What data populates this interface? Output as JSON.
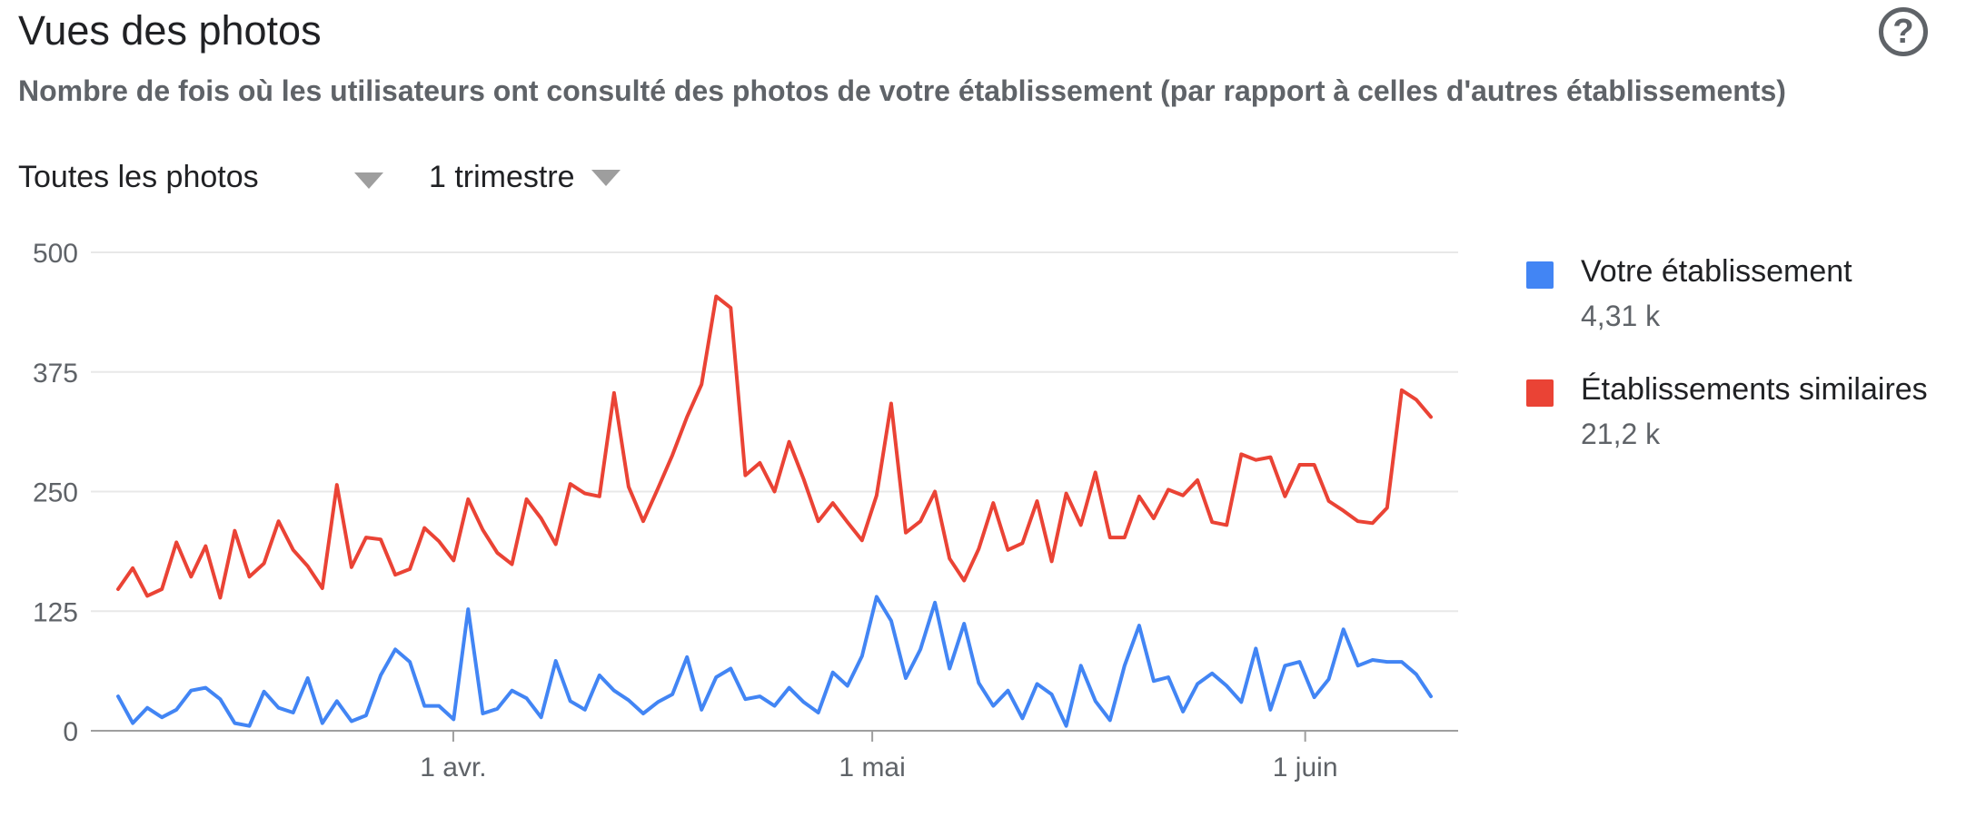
{
  "header": {
    "title": "Vues des photos",
    "subtitle": "Nombre de fois où les utilisateurs ont consulté des photos de votre établissement (par rapport à celles d'autres établissements)",
    "help_icon": "help-circle-icon"
  },
  "filters": {
    "photos_label": "Toutes les photos",
    "period_label": "1 trimestre"
  },
  "legend": [
    {
      "label": "Votre établissement",
      "total": "4,31 k",
      "color": "#4285f4"
    },
    {
      "label": "Établissements similaires",
      "total": "21,2 k",
      "color": "#ea4335"
    }
  ],
  "chart_data": {
    "type": "line",
    "title": "",
    "xlabel": "",
    "ylabel": "",
    "ylim": [
      0,
      500
    ],
    "yticks": [
      "0",
      "125",
      "250",
      "375",
      "500"
    ],
    "grid": true,
    "legend_position": "right",
    "x_start": "2019-03-08",
    "x_end": "2019-06-10",
    "xticks": [
      {
        "label": "1 avr.",
        "date": "2019-04-01"
      },
      {
        "label": "1 mai",
        "date": "2019-05-01"
      },
      {
        "label": "1 juin",
        "date": "2019-06-01"
      }
    ],
    "series": [
      {
        "name": "Votre établissement",
        "color": "#4285f4",
        "values": [
          36,
          8,
          24,
          14,
          22,
          42,
          45,
          33,
          8,
          5,
          41,
          24,
          19,
          55,
          8,
          31,
          10,
          16,
          58,
          85,
          72,
          26,
          26,
          12,
          127,
          18,
          23,
          42,
          34,
          14,
          73,
          31,
          22,
          58,
          42,
          32,
          18,
          30,
          38,
          77,
          22,
          56,
          65,
          33,
          36,
          26,
          45,
          30,
          19,
          61,
          47,
          78,
          140,
          115,
          55,
          85,
          134,
          65,
          112,
          50,
          26,
          42,
          13,
          49,
          38,
          5,
          68,
          31,
          11,
          68,
          110,
          52,
          56,
          20,
          49,
          60,
          47,
          30,
          86,
          22,
          68,
          72,
          35,
          54,
          106,
          68,
          74,
          72,
          72,
          59,
          36
        ]
      },
      {
        "name": "Établissements similaires",
        "color": "#ea4335",
        "values": [
          148,
          170,
          141,
          148,
          197,
          161,
          193,
          139,
          209,
          161,
          175,
          219,
          189,
          172,
          149,
          257,
          171,
          202,
          200,
          163,
          169,
          212,
          198,
          178,
          242,
          210,
          186,
          174,
          242,
          222,
          195,
          258,
          248,
          245,
          353,
          255,
          219,
          253,
          288,
          328,
          362,
          454,
          442,
          267,
          280,
          250,
          302,
          263,
          219,
          238,
          218,
          199,
          246,
          342,
          207,
          219,
          250,
          180,
          157,
          190,
          238,
          189,
          196,
          240,
          177,
          248,
          215,
          270,
          202,
          202,
          245,
          222,
          252,
          246,
          262,
          218,
          215,
          289,
          283,
          286,
          245,
          278,
          278,
          240,
          230,
          219,
          217,
          233,
          356,
          346,
          328
        ]
      }
    ]
  }
}
